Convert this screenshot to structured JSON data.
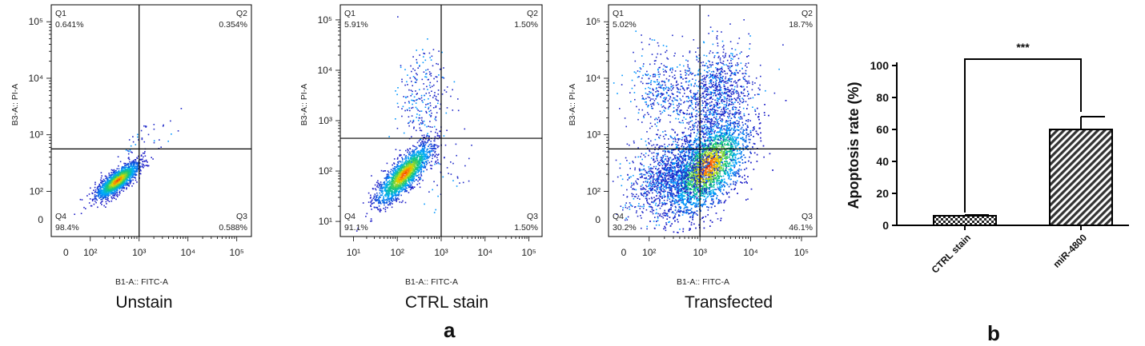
{
  "chart_data": [
    {
      "type": "scatter",
      "subtype": "flow-cytometry-density-plot",
      "caption": "Unstain",
      "xlabel": "B1-A:: FITC-A",
      "ylabel": "B3-A:: PI-A",
      "x_ticks": [
        "0",
        "10²",
        "10³",
        "10⁴",
        "10⁵"
      ],
      "y_ticks": [
        "0",
        "10²",
        "10³",
        "10⁴",
        "10⁵"
      ],
      "gate": {
        "x_log": 3.0,
        "y_log": 2.75
      },
      "quadrants": [
        {
          "name": "Q1",
          "value": "0.641%"
        },
        {
          "name": "Q2",
          "value": "0.354%"
        },
        {
          "name": "Q3",
          "value": "0.588%"
        },
        {
          "name": "Q4",
          "value": "98.4%"
        }
      ],
      "populations": [
        {
          "cx": 2.55,
          "cy": 2.2,
          "sx": 0.22,
          "sy": 0.16,
          "rho": 0.8,
          "n": 1700,
          "hot": true
        },
        {
          "cx": 3.1,
          "cy": 2.9,
          "sx": 0.3,
          "sy": 0.25,
          "rho": 0.6,
          "n": 40,
          "hot": false
        }
      ]
    },
    {
      "type": "scatter",
      "subtype": "flow-cytometry-density-plot",
      "caption": "CTRL stain",
      "xlabel": "B1-A:: FITC-A",
      "ylabel": "B3-A:: PI-A",
      "x_ticks": [
        "10¹",
        "10²",
        "10³",
        "10⁴",
        "10⁵"
      ],
      "y_ticks": [
        "10¹",
        "10²",
        "10³",
        "10⁴",
        "10⁵"
      ],
      "gate": {
        "x_log": 3.0,
        "y_log": 2.65
      },
      "quadrants": [
        {
          "name": "Q1",
          "value": "5.91%"
        },
        {
          "name": "Q2",
          "value": "1.50%"
        },
        {
          "name": "Q3",
          "value": "1.50%"
        },
        {
          "name": "Q4",
          "value": "91.1%"
        }
      ],
      "populations": [
        {
          "cx": 2.15,
          "cy": 1.95,
          "sx": 0.32,
          "sy": 0.3,
          "rho": 0.82,
          "n": 1900,
          "hot": true
        },
        {
          "cx": 2.55,
          "cy": 3.4,
          "sx": 0.28,
          "sy": 0.5,
          "rho": 0.1,
          "n": 260,
          "hot": false
        },
        {
          "cx": 3.1,
          "cy": 2.0,
          "sx": 0.3,
          "sy": 0.3,
          "rho": 0.2,
          "n": 40,
          "hot": false
        }
      ]
    },
    {
      "type": "scatter",
      "subtype": "flow-cytometry-density-plot",
      "caption": "Transfected",
      "xlabel": "B1-A:: FITC-A",
      "ylabel": "B3-A:: PI-A",
      "x_ticks": [
        "0",
        "10²",
        "10³",
        "10⁴",
        "10⁵"
      ],
      "y_ticks": [
        "0",
        "10²",
        "10³",
        "10⁴",
        "10⁵"
      ],
      "gate": {
        "x_log": 3.0,
        "y_log": 2.75
      },
      "quadrants": [
        {
          "name": "Q1",
          "value": "5.02%"
        },
        {
          "name": "Q2",
          "value": "18.7%"
        },
        {
          "name": "Q3",
          "value": "46.1%"
        },
        {
          "name": "Q4",
          "value": "30.2%"
        }
      ],
      "populations": [
        {
          "cx": 3.15,
          "cy": 2.45,
          "sx": 0.4,
          "sy": 0.42,
          "rho": 0.55,
          "n": 4200,
          "hot": true
        },
        {
          "cx": 2.5,
          "cy": 2.3,
          "sx": 0.45,
          "sy": 0.35,
          "rho": 0.3,
          "n": 1500,
          "hot": false
        },
        {
          "cx": 3.3,
          "cy": 3.7,
          "sx": 0.35,
          "sy": 0.45,
          "rho": 0.2,
          "n": 1100,
          "hot": false
        },
        {
          "cx": 2.2,
          "cy": 3.8,
          "sx": 0.3,
          "sy": 0.35,
          "rho": 0.0,
          "n": 350,
          "hot": false
        }
      ]
    },
    {
      "type": "bar",
      "categories": [
        "CTRL stain",
        "miR-4800"
      ],
      "values": [
        6,
        60
      ],
      "errors": [
        0.5,
        8
      ],
      "patterns": [
        "checker",
        "diagonal"
      ],
      "ylabel": "Apoptosis rate (%)",
      "xlabel": "",
      "ylim": [
        0,
        100
      ],
      "y_ticks": [
        0,
        20,
        40,
        60,
        80,
        100
      ],
      "significance": "***"
    }
  ],
  "panel_labels": {
    "a": "a",
    "b": "b"
  }
}
